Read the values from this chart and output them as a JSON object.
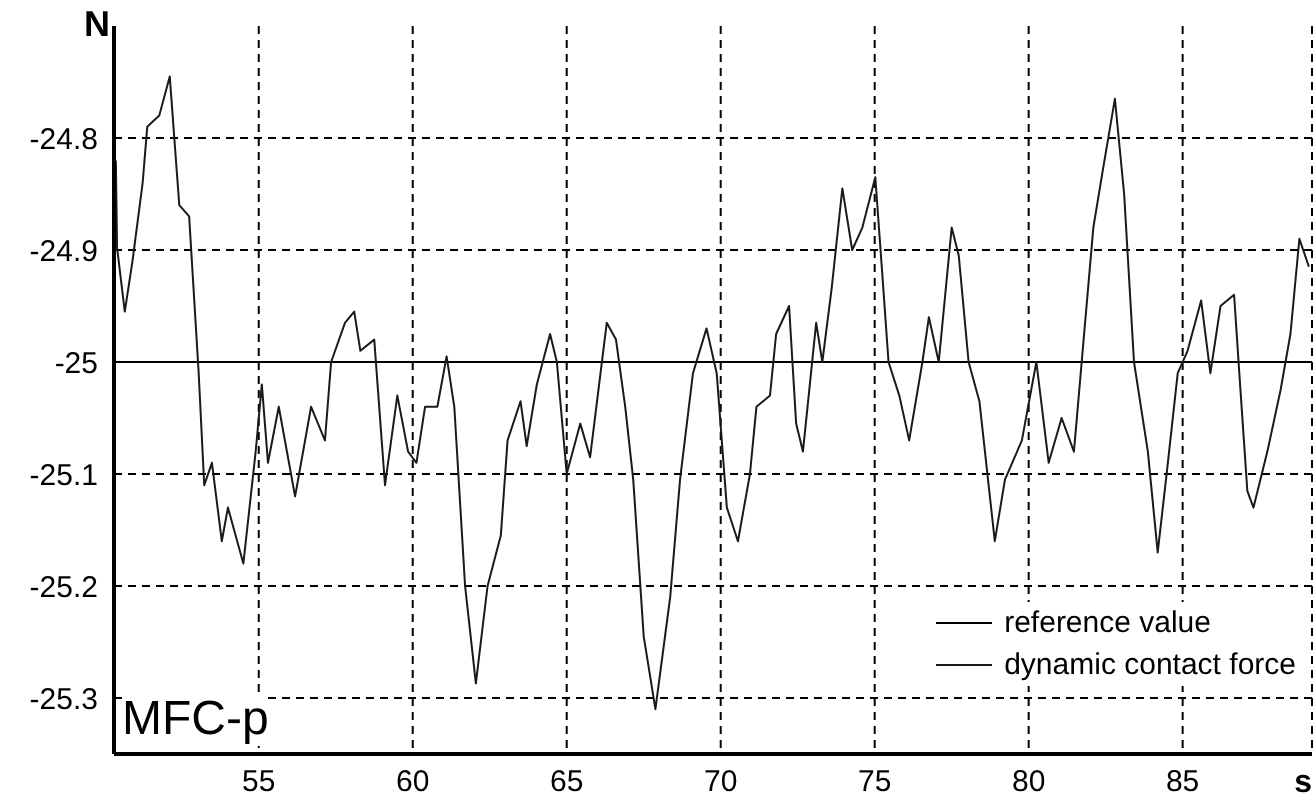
{
  "chart_data": {
    "type": "line",
    "xlabel": "s",
    "ylabel": "N",
    "annotations": [
      "MFC-p"
    ],
    "xlim": [
      50.3,
      89.2
    ],
    "xticks": [
      55,
      60,
      65,
      70,
      75,
      80,
      85
    ],
    "ylim": [
      -25.35,
      -24.7
    ],
    "yticks": [
      -24.8,
      -24.9,
      -25,
      -25.1,
      -25.2,
      -25.3
    ],
    "grid": true,
    "legend": "bottom right",
    "series": [
      {
        "name": "reference value",
        "color": "#000000",
        "x": [
          50.3,
          89.2
        ],
        "values": [
          -25,
          -25
        ]
      },
      {
        "name": "dynamic contact force",
        "color": "#1a1a1a",
        "x": [
          50.36,
          50.4,
          50.65,
          50.9,
          51.23,
          51.38,
          51.77,
          52.11,
          52.42,
          52.74,
          53.05,
          53.23,
          53.48,
          53.8,
          54.0,
          54.5,
          54.9,
          55.1,
          55.3,
          55.65,
          56.18,
          56.7,
          57.15,
          57.35,
          57.8,
          58.1,
          58.3,
          58.75,
          59.1,
          59.5,
          59.85,
          60.12,
          60.4,
          60.8,
          61.1,
          61.35,
          61.7,
          62.05,
          62.43,
          62.86,
          63.08,
          63.5,
          63.7,
          64.03,
          64.46,
          64.68,
          65.0,
          65.44,
          65.76,
          66.3,
          66.6,
          66.9,
          67.16,
          67.5,
          67.88,
          68.36,
          68.68,
          69.1,
          69.54,
          69.87,
          70.2,
          70.56,
          70.95,
          71.16,
          71.6,
          71.8,
          72.22,
          72.45,
          72.67,
          73.1,
          73.3,
          73.6,
          73.95,
          74.27,
          74.6,
          75.02,
          75.23,
          75.45,
          75.8,
          76.12,
          76.55,
          76.76,
          77.08,
          77.5,
          77.73,
          78.05,
          78.4,
          78.9,
          79.23,
          79.78,
          80.25,
          80.65,
          81.07,
          81.47,
          81.8,
          82.1,
          82.4,
          82.8,
          83.1,
          83.42,
          83.87,
          84.19,
          84.5,
          84.84,
          85.16,
          85.6,
          85.9,
          86.23,
          86.67,
          86.84,
          87.1,
          87.3,
          87.75,
          88.18,
          88.5,
          88.79,
          89.1
        ],
        "values": [
          -24.82,
          -24.898,
          -24.955,
          -24.91,
          -24.84,
          -24.79,
          -24.78,
          -24.745,
          -24.86,
          -24.87,
          -25.01,
          -25.11,
          -25.09,
          -25.16,
          -25.13,
          -25.18,
          -25.08,
          -25.02,
          -25.09,
          -25.04,
          -25.12,
          -25.04,
          -25.07,
          -25.0,
          -24.965,
          -24.955,
          -24.99,
          -24.98,
          -25.11,
          -25.03,
          -25.08,
          -25.09,
          -25.04,
          -25.04,
          -24.995,
          -25.04,
          -25.2,
          -25.287,
          -25.2,
          -25.155,
          -25.07,
          -25.035,
          -25.075,
          -25.02,
          -24.975,
          -25.0,
          -25.1,
          -25.055,
          -25.085,
          -24.965,
          -24.98,
          -25.04,
          -25.105,
          -25.245,
          -25.31,
          -25.21,
          -25.105,
          -25.01,
          -24.97,
          -25.01,
          -25.13,
          -25.16,
          -25.1,
          -25.04,
          -25.03,
          -24.975,
          -24.95,
          -25.055,
          -25.08,
          -24.965,
          -25.0,
          -24.935,
          -24.845,
          -24.9,
          -24.88,
          -24.835,
          -24.915,
          -25.0,
          -25.03,
          -25.07,
          -25.0,
          -24.96,
          -25.0,
          -24.88,
          -24.905,
          -25.0,
          -25.035,
          -25.16,
          -25.105,
          -25.07,
          -25.0,
          -25.09,
          -25.05,
          -25.08,
          -24.975,
          -24.88,
          -24.83,
          -24.765,
          -24.85,
          -25.0,
          -25.08,
          -25.17,
          -25.095,
          -25.01,
          -24.99,
          -24.945,
          -25.01,
          -24.95,
          -24.94,
          -25.01,
          -25.115,
          -25.13,
          -25.08,
          -25.025,
          -24.975,
          -24.89,
          -24.915
        ]
      }
    ]
  }
}
